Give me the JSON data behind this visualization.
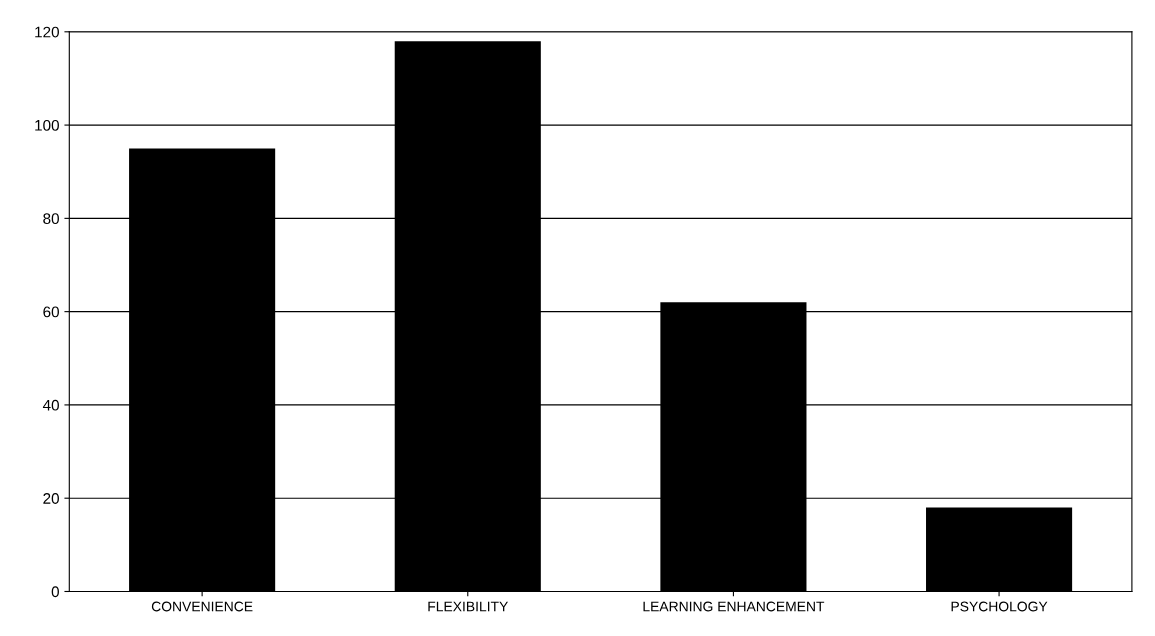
{
  "chart_data": {
    "type": "bar",
    "categories": [
      "CONVENIENCE",
      "FLEXIBILITY",
      "LEARNING ENHANCEMENT",
      "PSYCHOLOGY"
    ],
    "values": [
      95,
      118,
      62,
      18
    ],
    "color": "#000000",
    "ylim": [
      0,
      120
    ],
    "yticks": [
      0,
      20,
      40,
      60,
      80,
      100,
      120
    ],
    "grid": "y"
  }
}
